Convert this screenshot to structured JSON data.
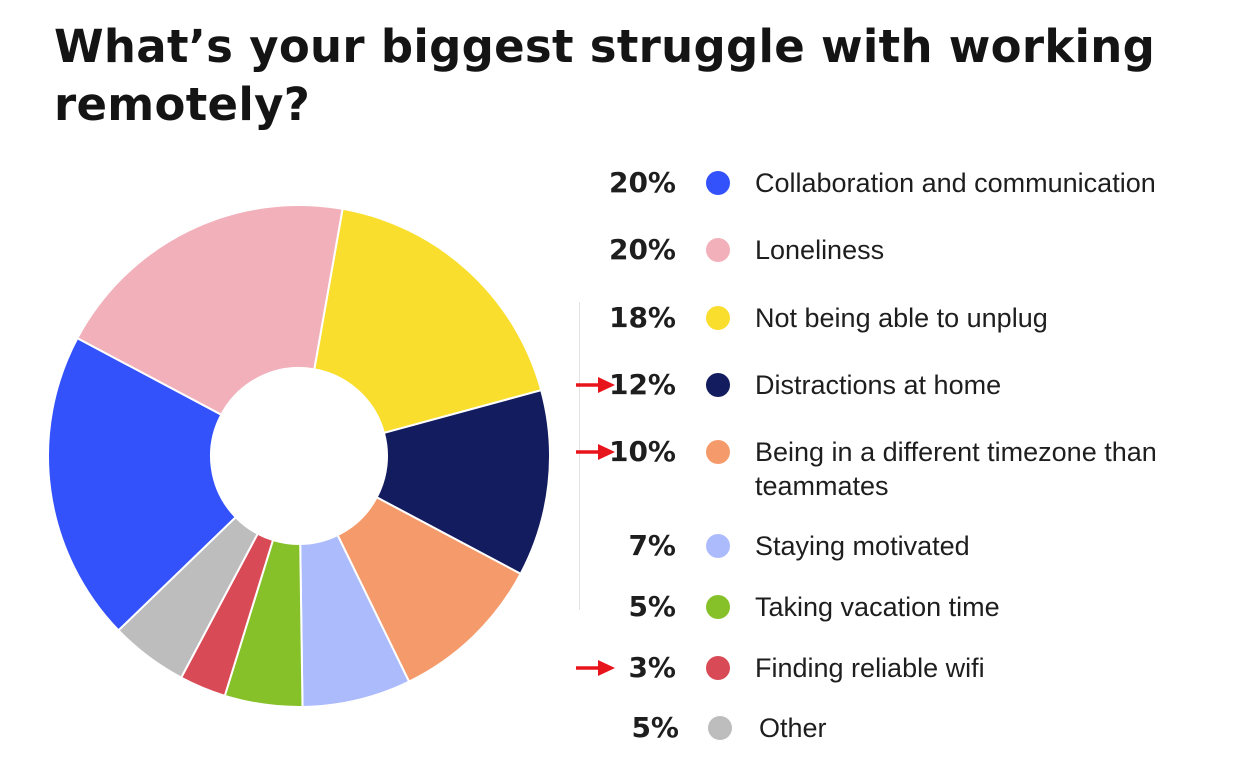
{
  "chart_data": {
    "type": "pie",
    "style": "donut",
    "title": "What’s your biggest struggle with working remotely?",
    "unit": "%",
    "start_angle_deg": 10,
    "direction": "clockwise",
    "slices": [
      {
        "label": "Collaboration and communication",
        "value": 20,
        "display": "20%",
        "color": "#3352fb"
      },
      {
        "label": "Loneliness",
        "value": 20,
        "display": "20%",
        "color": "#f1b0ba"
      },
      {
        "label": "Not being able to unplug",
        "value": 18,
        "display": "18%",
        "color": "#f9de2e"
      },
      {
        "label": "Distractions at home",
        "value": 12,
        "display": "12%",
        "color": "#141c60",
        "arrow": true
      },
      {
        "label": "Being in a different timezone than teammates",
        "value": 10,
        "display": "10%",
        "color": "#f59b6b",
        "arrow": true
      },
      {
        "label": "Staying motivated",
        "value": 7,
        "display": "7%",
        "color": "#acbbfc"
      },
      {
        "label": "Taking vacation time",
        "value": 5,
        "display": "5%",
        "color": "#86c129"
      },
      {
        "label": "Finding reliable wifi",
        "value": 3,
        "display": "3%",
        "color": "#d84a56",
        "arrow": true
      },
      {
        "label": "Other",
        "value": 5,
        "display": "5%",
        "color": "#bdbdbd"
      }
    ],
    "pie_order": [
      2,
      3,
      4,
      5,
      6,
      7,
      8,
      0,
      1
    ],
    "legend_placement": "right",
    "annotation_color": "#e8141c"
  }
}
